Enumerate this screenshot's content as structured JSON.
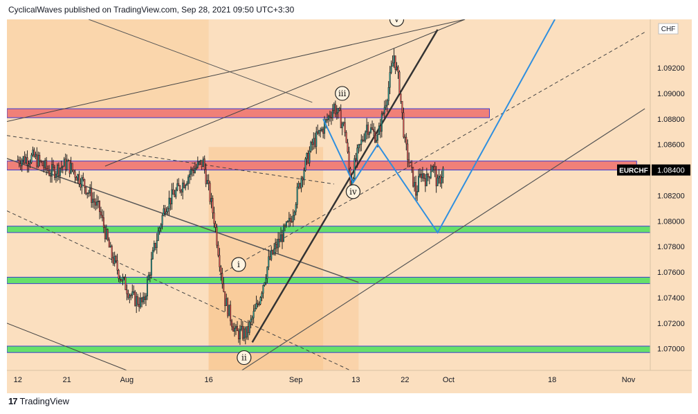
{
  "header": {
    "published_line": "CyclicalWaves published on TradingView.com, Sep 28, 2021 09:50 UTC+3:30"
  },
  "footer": {
    "logo_glyph": "17",
    "brand": "TradingView"
  },
  "chart_data": {
    "type": "candlestick",
    "symbol": "EURCHF",
    "currency": "CHF",
    "last_price_label": "1.08400",
    "y_tick_labels": [
      "1.09200",
      "1.09000",
      "1.08800",
      "1.08600",
      "1.08400",
      "1.08200",
      "1.08000",
      "1.07800",
      "1.07600",
      "1.07400",
      "1.07200",
      "1.07000"
    ],
    "y_ticks": [
      1.092,
      1.09,
      1.088,
      1.086,
      1.084,
      1.082,
      1.08,
      1.078,
      1.076,
      1.074,
      1.072,
      1.07
    ],
    "ylim": [
      1.0683,
      1.0958
    ],
    "x_tick_labels": [
      "12",
      "21",
      "Aug",
      "16",
      "Sep",
      "13",
      "22",
      "Oct",
      "18",
      "Nov"
    ],
    "x_ticks_day": [
      0,
      9,
      20,
      35,
      51,
      62,
      71,
      79,
      98,
      112
    ],
    "x_range_day": [
      -2,
      116
    ],
    "x_origin_date": "2021-07-12",
    "support_zones": [
      {
        "low": 1.0791,
        "high": 1.0796,
        "color": "#66e06a"
      },
      {
        "low": 1.0751,
        "high": 1.0756,
        "color": "#66e06a"
      },
      {
        "low": 1.0697,
        "high": 1.0702,
        "color": "#66e06a"
      }
    ],
    "resistance_zones": [
      {
        "low": 1.0881,
        "high": 1.0888,
        "color": "#f08078"
      },
      {
        "low": 1.084,
        "high": 1.0847,
        "color": "#f08078"
      }
    ],
    "wave_labels": [
      {
        "text": "i",
        "day": 40.5,
        "price": 1.0766
      },
      {
        "text": "ii",
        "day": 41.5,
        "price": 1.0693
      },
      {
        "text": "iii",
        "day": 59.5,
        "price": 1.09
      },
      {
        "text": "iv",
        "day": 61.5,
        "price": 1.0823
      },
      {
        "text": "v",
        "day": 69.5,
        "price": 1.0958
      }
    ],
    "projection_path": [
      {
        "day": 56.0,
        "price": 1.088
      },
      {
        "day": 61.5,
        "price": 1.083
      },
      {
        "day": 66.0,
        "price": 1.086
      },
      {
        "day": 77.0,
        "price": 1.0791
      },
      {
        "day": 98.5,
        "price": 1.0958
      }
    ],
    "colors": {
      "up": "#26a69a",
      "down": "#ef5350",
      "candle_outline": "#1e1e1e",
      "background": "#fbdfbf",
      "projection": "#2f8fdf",
      "trendline": "#333333",
      "shade": "#f9c590",
      "last_price_badge": "#000000"
    }
  }
}
